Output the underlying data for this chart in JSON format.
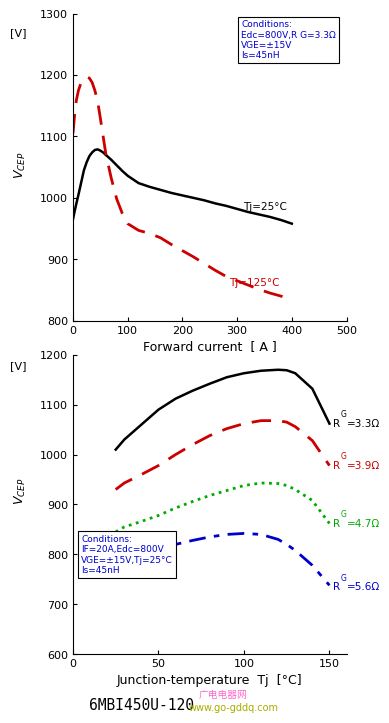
{
  "plot1": {
    "xlim": [
      0,
      500
    ],
    "ylim": [
      800,
      1300
    ],
    "xticks": [
      0,
      100,
      200,
      300,
      400,
      500
    ],
    "yticks": [
      800,
      900,
      1000,
      1100,
      1200,
      1300
    ],
    "xlabel": "Forward current  [ A ]",
    "conditions_line1": "Conditions:",
    "conditions_line2": "Edc=800V,R G=3.3Ω",
    "conditions_line3": "VGE=±15V",
    "conditions_line4": "ls=45nH",
    "curve_tj25_x": [
      0,
      3,
      6,
      10,
      15,
      20,
      25,
      30,
      35,
      40,
      45,
      50,
      55,
      60,
      70,
      80,
      90,
      100,
      120,
      140,
      160,
      180,
      200,
      220,
      240,
      260,
      280,
      300,
      320,
      340,
      360,
      380,
      400
    ],
    "curve_tj25_y": [
      965,
      978,
      990,
      1005,
      1025,
      1045,
      1058,
      1068,
      1074,
      1078,
      1079,
      1077,
      1074,
      1070,
      1062,
      1053,
      1044,
      1036,
      1024,
      1018,
      1013,
      1008,
      1004,
      1000,
      996,
      991,
      987,
      982,
      977,
      973,
      969,
      964,
      958
    ],
    "curve_tj25_color": "#000000",
    "curve_tj25_label": "Tj=25°C",
    "curve_tj125_x": [
      0,
      3,
      6,
      10,
      15,
      20,
      25,
      30,
      35,
      40,
      45,
      50,
      60,
      70,
      80,
      90,
      100,
      120,
      140,
      160,
      180,
      200,
      220,
      240,
      260,
      280,
      300,
      320,
      340,
      360,
      380,
      400
    ],
    "curve_tj125_y": [
      1105,
      1135,
      1158,
      1175,
      1188,
      1193,
      1197,
      1195,
      1188,
      1175,
      1158,
      1130,
      1072,
      1032,
      998,
      975,
      958,
      947,
      942,
      935,
      924,
      914,
      904,
      893,
      882,
      872,
      865,
      858,
      851,
      845,
      840,
      835
    ],
    "curve_tj125_color": "#cc0000",
    "curve_tj125_label": "Tj=125°C"
  },
  "plot2": {
    "xlim": [
      0,
      160
    ],
    "ylim": [
      600,
      1200
    ],
    "xticks": [
      0,
      50,
      100,
      150
    ],
    "yticks": [
      600,
      700,
      800,
      900,
      1000,
      1100,
      1200
    ],
    "xlabel": "Junction-temperature  Tj  [°C]",
    "conditions_line1": "Conditions:",
    "conditions_line2": "IF=20A,Edc=800V",
    "conditions_line3": "VGE=±15V,Tj=25°C",
    "conditions_line4": "ls=45nH",
    "curve_r33_x": [
      25,
      30,
      40,
      50,
      60,
      70,
      80,
      90,
      100,
      110,
      120,
      125,
      130,
      140,
      150
    ],
    "curve_r33_y": [
      1010,
      1030,
      1060,
      1090,
      1112,
      1128,
      1142,
      1155,
      1163,
      1168,
      1170,
      1169,
      1163,
      1132,
      1062
    ],
    "curve_r33_color": "#000000",
    "curve_r33_label": "R",
    "curve_r33_label2": "G",
    "curve_r33_label3": "=3.3Ω",
    "curve_r39_x": [
      25,
      30,
      40,
      50,
      60,
      70,
      80,
      90,
      100,
      110,
      120,
      125,
      130,
      140,
      150
    ],
    "curve_r39_y": [
      930,
      943,
      960,
      978,
      1000,
      1020,
      1038,
      1052,
      1062,
      1068,
      1068,
      1065,
      1056,
      1028,
      978
    ],
    "curve_r39_color": "#cc0000",
    "curve_r39_label": "R",
    "curve_r39_label2": "G",
    "curve_r39_label3": "=3.9Ω",
    "curve_r47_x": [
      25,
      30,
      40,
      50,
      60,
      70,
      80,
      90,
      100,
      110,
      120,
      125,
      130,
      140,
      150
    ],
    "curve_r47_y": [
      845,
      855,
      866,
      878,
      893,
      906,
      918,
      928,
      938,
      943,
      942,
      938,
      930,
      908,
      862
    ],
    "curve_r47_color": "#00aa00",
    "curve_r47_label": "R",
    "curve_r47_label2": "G",
    "curve_r47_label3": "=4.7Ω",
    "curve_r56_x": [
      25,
      30,
      40,
      50,
      60,
      70,
      80,
      90,
      100,
      110,
      120,
      125,
      130,
      140,
      150
    ],
    "curve_r56_y": [
      778,
      788,
      800,
      810,
      820,
      828,
      835,
      840,
      842,
      840,
      830,
      820,
      808,
      778,
      738
    ],
    "curve_r56_color": "#0000cc",
    "curve_r56_label": "R",
    "curve_r56_label2": "G",
    "curve_r56_label3": "=5.6Ω"
  },
  "footer_text": "6MBI450U-120",
  "watermark_chinese": "广电电器网",
  "watermark_url": "www.go-gddq.com",
  "bg_color": "#ffffff",
  "cond_text_color": "#0000cc",
  "label_color_black": "#000000",
  "label_color_red": "#cc0000",
  "label_color_green": "#00aa00",
  "label_color_blue": "#0000cc"
}
